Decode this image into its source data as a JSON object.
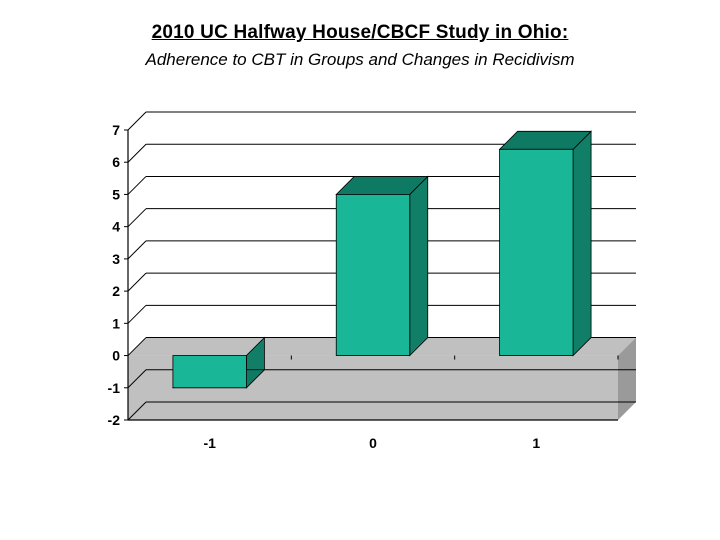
{
  "title": {
    "text": "2010 UC Halfway House/CBCF Study in Ohio:",
    "fontsize": 19,
    "fontweight": "bold",
    "underline": true,
    "color": "#000000"
  },
  "subtitle": {
    "text": "Adherence to CBT in Groups and Changes in Recidivism",
    "fontsize": 17,
    "fontstyle": "italic",
    "color": "#000000"
  },
  "chart": {
    "type": "bar-3d",
    "categories": [
      "-1",
      "0",
      "1"
    ],
    "values": [
      -1,
      5,
      6.4
    ],
    "ylim": [
      -2,
      7
    ],
    "ytick_step": 1,
    "yticks": [
      -2,
      -1,
      0,
      1,
      2,
      3,
      4,
      5,
      6,
      7
    ],
    "bar_face_color": "#19b698",
    "bar_top_color": "#0f7a64",
    "bar_side_color": "#117f68",
    "floor_color": "#c0c0c0",
    "floor_dark": "#9a9a9a",
    "wall_color": "#ffffff",
    "gridline_color": "#000000",
    "axis_line_color": "#000000",
    "depth": 18,
    "bar_width_ratio": 0.45,
    "label_fontsize": 14,
    "background_color": "#ffffff"
  }
}
